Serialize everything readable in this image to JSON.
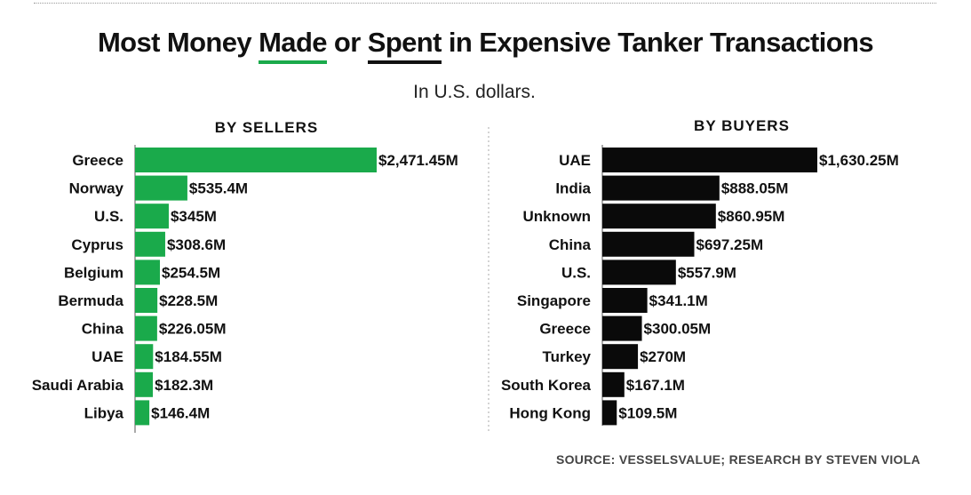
{
  "header": {
    "title_before": "Most Money ",
    "title_made": "Made",
    "title_or": " or ",
    "title_spent": "Spent",
    "title_after": " in Expensive Tanker Transactions",
    "subtitle": "In U.S. dollars."
  },
  "colors": {
    "sellers": "#1aaa4b",
    "buyers": "#0a0a0a"
  },
  "chart_data": [
    {
      "type": "bar",
      "orientation": "horizontal",
      "title": "BY SELLERS",
      "unit": "million USD",
      "categories": [
        "Greece",
        "Norway",
        "U.S.",
        "Cyprus",
        "Belgium",
        "Bermuda",
        "China",
        "UAE",
        "Saudi Arabia",
        "Libya"
      ],
      "values": [
        2471.45,
        535.4,
        345,
        308.6,
        254.5,
        228.5,
        226.05,
        184.55,
        182.3,
        146.4
      ],
      "value_labels": [
        "$2,471.45M",
        "$535.4M",
        "$345M",
        "$308.6M",
        "$254.5M",
        "$228.5M",
        "$226.05M",
        "$184.55M",
        "$182.3M",
        "$146.4M"
      ],
      "xlim": [
        0,
        2471.45
      ]
    },
    {
      "type": "bar",
      "orientation": "horizontal",
      "title": "BY BUYERS",
      "unit": "million USD",
      "categories": [
        "UAE",
        "India",
        "Unknown",
        "China",
        "U.S.",
        "Singapore",
        "Greece",
        "Turkey",
        "South Korea",
        "Hong Kong"
      ],
      "values": [
        1630.25,
        888.05,
        860.95,
        697.25,
        557.9,
        341.1,
        300.05,
        270,
        167.1,
        109.5
      ],
      "value_labels": [
        "$1,630.25M",
        "$888.05M",
        "$860.95M",
        "$697.25M",
        "$557.9M",
        "$341.1M",
        "$300.05M",
        "$270M",
        "$167.1M",
        "$109.5M"
      ],
      "xlim": [
        0,
        1630.25
      ]
    }
  ],
  "source": "SOURCE: VESSELSVALUE; RESEARCH BY STEVEN VIOLA"
}
